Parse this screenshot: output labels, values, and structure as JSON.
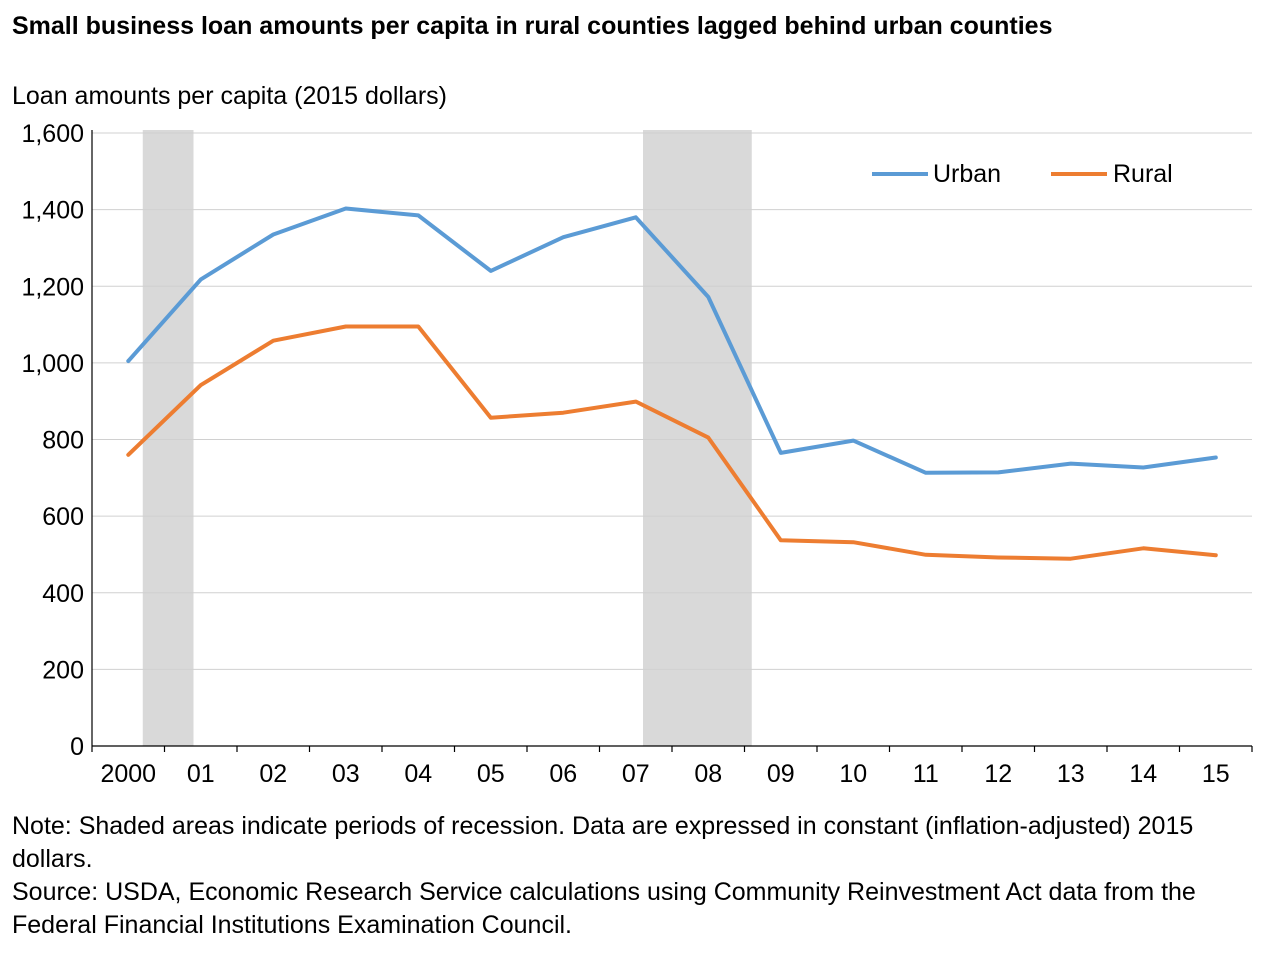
{
  "chart_title": "Small business loan amounts per capita in rural counties lagged behind urban counties",
  "chart_data": {
    "type": "line",
    "title": "Small business loan amounts per capita in rural counties lagged behind urban counties",
    "ylabel": "Loan amounts per capita (2015 dollars)",
    "xlabel": "",
    "categories": [
      "2000",
      "01",
      "02",
      "03",
      "04",
      "05",
      "06",
      "07",
      "08",
      "09",
      "10",
      "11",
      "12",
      "13",
      "14",
      "15"
    ],
    "ylim": [
      0,
      1600
    ],
    "yticks": [
      0,
      200,
      400,
      600,
      800,
      1000,
      1200,
      1400,
      1600
    ],
    "ytick_labels": [
      "0",
      "200",
      "400",
      "600",
      "800",
      "1,000",
      "1,200",
      "1,400",
      "1,600"
    ],
    "grid": "horizontal",
    "legend_position": "top-right",
    "recessions": [
      [
        0.7,
        1.4
      ],
      [
        7.6,
        9.1
      ]
    ],
    "series": [
      {
        "name": "Urban",
        "color": "#5b9bd5",
        "values": [
          1005,
          1218,
          1335,
          1403,
          1385,
          1240,
          1328,
          1380,
          1172,
          765,
          797,
          713,
          714,
          737,
          727,
          753
        ]
      },
      {
        "name": "Rural",
        "color": "#ed7d31",
        "values": [
          760,
          942,
          1058,
          1095,
          1095,
          857,
          870,
          899,
          805,
          537,
          532,
          499,
          492,
          489,
          516,
          498
        ]
      }
    ]
  },
  "notes": {
    "note": "Note: Shaded areas indicate periods of recession. Data are expressed in constant (inflation-adjusted) 2015 dollars.",
    "source": "Source: USDA, Economic Research Service calculations using Community Reinvestment Act data from the Federal Financial Institutions Examination Council."
  },
  "colors": {
    "recession_shade": "#d9d9d9",
    "grid": "#d0d0d0",
    "axis": "#000000"
  }
}
